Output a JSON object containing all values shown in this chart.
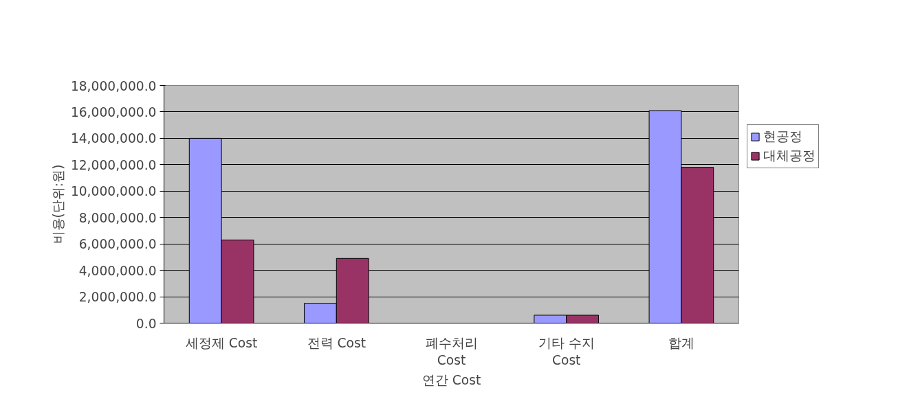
{
  "chart_data": {
    "type": "bar",
    "xlabel": "연간 Cost",
    "ylabel": "비용(단위:원)",
    "categories": [
      "세정제 Cost",
      "전력 Cost",
      "폐수처리 Cost",
      "기타 수지 Cost",
      "합계"
    ],
    "series": [
      {
        "name": "현공정",
        "color": "#9999ff",
        "values": [
          14000000,
          1500000,
          0,
          600000,
          16100000
        ]
      },
      {
        "name": "대체공정",
        "color": "#993366",
        "values": [
          6300000,
          4900000,
          0,
          600000,
          11800000
        ]
      }
    ],
    "ylim": [
      0,
      18000000
    ],
    "yticks": [
      {
        "value": 0,
        "label": "0.0"
      },
      {
        "value": 2000000,
        "label": "2,000,000.0"
      },
      {
        "value": 4000000,
        "label": "4,000,000.0"
      },
      {
        "value": 6000000,
        "label": "6,000,000.0"
      },
      {
        "value": 8000000,
        "label": "8,000,000.0"
      },
      {
        "value": 10000000,
        "label": "10,000,000.0"
      },
      {
        "value": 12000000,
        "label": "12,000,000.0"
      },
      {
        "value": 14000000,
        "label": "14,000,000.0"
      },
      {
        "value": 16000000,
        "label": "16,000,000.0"
      },
      {
        "value": 18000000,
        "label": "18,000,000.0"
      }
    ],
    "grid": "y",
    "legend": "right"
  }
}
